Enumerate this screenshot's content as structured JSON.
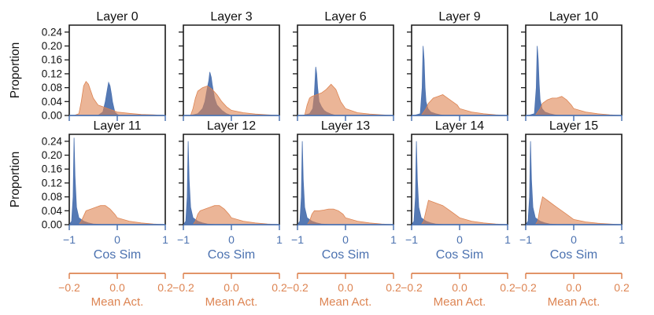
{
  "colors": {
    "cos_sim": "#4c72b0",
    "mean_act": "#dd8452",
    "frame": "#1a1a1a"
  },
  "chart_data": {
    "type": "area",
    "layout": "2 rows x 5 columns of small-multiple histograms",
    "ylabel": "Proportion",
    "ylim": [
      0,
      0.26
    ],
    "yticks": [
      "0.00",
      "0.04",
      "0.08",
      "0.12",
      "0.16",
      "0.20",
      "0.24"
    ],
    "bottom_axis": {
      "label": "Cos Sim",
      "range": [
        -1,
        1
      ],
      "ticks": [
        "−1",
        "0",
        "1"
      ]
    },
    "secondary_axis": {
      "label": "Mean Act.",
      "range": [
        -0.2,
        0.2
      ],
      "ticks": [
        "−0.2",
        "0.0",
        "0.2"
      ]
    },
    "series_legend": [
      "Cos Sim",
      "Mean Act."
    ],
    "panels": [
      {
        "title": "Layer 0",
        "cos_sim": {
          "x": [
            -0.4,
            -0.3,
            -0.25,
            -0.2,
            -0.18,
            -0.15,
            -0.12,
            -0.1,
            -0.05,
            0.0,
            0.05
          ],
          "y": [
            0,
            0.01,
            0.04,
            0.08,
            0.095,
            0.085,
            0.06,
            0.04,
            0.01,
            0.003,
            0
          ]
        },
        "mean_act": {
          "x": [
            -0.2,
            -0.18,
            -0.16,
            -0.15,
            -0.14,
            -0.13,
            -0.12,
            -0.1,
            -0.08,
            -0.06,
            -0.04,
            -0.02,
            0.0,
            0.05,
            0.1,
            0.15,
            0.2
          ],
          "y": [
            0,
            0,
            0.005,
            0.04,
            0.085,
            0.098,
            0.09,
            0.05,
            0.03,
            0.025,
            0.02,
            0.015,
            0.01,
            0.006,
            0.003,
            0.002,
            0
          ]
        }
      },
      {
        "title": "Layer 3",
        "cos_sim": {
          "x": [
            -0.85,
            -0.7,
            -0.6,
            -0.55,
            -0.5,
            -0.47,
            -0.45,
            -0.42,
            -0.4,
            -0.35,
            -0.3,
            -0.2,
            -0.1,
            0.0
          ],
          "y": [
            0,
            0.005,
            0.02,
            0.04,
            0.08,
            0.1,
            0.125,
            0.11,
            0.09,
            0.05,
            0.03,
            0.015,
            0.005,
            0
          ]
        },
        "mean_act": {
          "x": [
            -0.2,
            -0.17,
            -0.16,
            -0.15,
            -0.14,
            -0.12,
            -0.1,
            -0.08,
            -0.06,
            -0.04,
            -0.02,
            0.0,
            0.05,
            0.1,
            0.15,
            0.2
          ],
          "y": [
            0,
            0,
            0.02,
            0.05,
            0.07,
            0.08,
            0.085,
            0.075,
            0.06,
            0.04,
            0.025,
            0.015,
            0.008,
            0.004,
            0.002,
            0
          ]
        }
      },
      {
        "title": "Layer 6",
        "cos_sim": {
          "x": [
            -0.9,
            -0.75,
            -0.68,
            -0.65,
            -0.62,
            -0.6,
            -0.58,
            -0.55,
            -0.5,
            -0.45,
            -0.4,
            -0.3,
            -0.2
          ],
          "y": [
            0,
            0.005,
            0.02,
            0.06,
            0.14,
            0.12,
            0.08,
            0.04,
            0.025,
            0.015,
            0.01,
            0.004,
            0
          ]
        },
        "mean_act": {
          "x": [
            -0.2,
            -0.17,
            -0.16,
            -0.15,
            -0.14,
            -0.12,
            -0.1,
            -0.08,
            -0.06,
            -0.04,
            -0.02,
            0.0,
            0.05,
            0.1,
            0.15,
            0.2
          ],
          "y": [
            0,
            0,
            0.03,
            0.05,
            0.055,
            0.06,
            0.065,
            0.075,
            0.09,
            0.075,
            0.04,
            0.02,
            0.008,
            0.004,
            0.002,
            0
          ]
        }
      },
      {
        "title": "Layer 9",
        "cos_sim": {
          "x": [
            -0.95,
            -0.82,
            -0.78,
            -0.76,
            -0.74,
            -0.72,
            -0.7,
            -0.66,
            -0.6,
            -0.5,
            -0.4,
            -0.3
          ],
          "y": [
            0,
            0.005,
            0.08,
            0.2,
            0.16,
            0.08,
            0.04,
            0.02,
            0.01,
            0.005,
            0.002,
            0
          ]
        },
        "mean_act": {
          "x": [
            -0.2,
            -0.16,
            -0.15,
            -0.14,
            -0.13,
            -0.11,
            -0.09,
            -0.07,
            -0.05,
            -0.03,
            -0.01,
            0.0,
            0.05,
            0.1,
            0.15,
            0.2
          ],
          "y": [
            0,
            0,
            0.01,
            0.02,
            0.035,
            0.05,
            0.055,
            0.06,
            0.05,
            0.04,
            0.03,
            0.02,
            0.01,
            0.005,
            0.002,
            0
          ]
        }
      },
      {
        "title": "Layer 10",
        "cos_sim": {
          "x": [
            -0.95,
            -0.82,
            -0.78,
            -0.76,
            -0.74,
            -0.72,
            -0.7,
            -0.66,
            -0.6,
            -0.5,
            -0.4,
            -0.3
          ],
          "y": [
            0,
            0.005,
            0.08,
            0.2,
            0.16,
            0.09,
            0.045,
            0.02,
            0.01,
            0.005,
            0.002,
            0
          ]
        },
        "mean_act": {
          "x": [
            -0.2,
            -0.16,
            -0.15,
            -0.14,
            -0.13,
            -0.11,
            -0.09,
            -0.07,
            -0.05,
            -0.03,
            -0.01,
            0.0,
            0.05,
            0.1,
            0.15,
            0.2
          ],
          "y": [
            0,
            0,
            0.01,
            0.02,
            0.035,
            0.045,
            0.05,
            0.05,
            0.055,
            0.045,
            0.03,
            0.02,
            0.01,
            0.005,
            0.002,
            0
          ]
        }
      },
      {
        "title": "Layer 11",
        "cos_sim": {
          "x": [
            -1.0,
            -0.95,
            -0.92,
            -0.9,
            -0.88,
            -0.85,
            -0.8,
            -0.7,
            -0.6,
            -0.5,
            -0.3
          ],
          "y": [
            0,
            0.01,
            0.08,
            0.25,
            0.14,
            0.05,
            0.02,
            0.01,
            0.005,
            0.002,
            0
          ]
        },
        "mean_act": {
          "x": [
            -0.2,
            -0.16,
            -0.15,
            -0.14,
            -0.13,
            -0.11,
            -0.09,
            -0.07,
            -0.05,
            -0.03,
            -0.01,
            0.0,
            0.05,
            0.1,
            0.15,
            0.2
          ],
          "y": [
            0,
            0,
            0.01,
            0.025,
            0.04,
            0.045,
            0.05,
            0.055,
            0.055,
            0.045,
            0.03,
            0.02,
            0.01,
            0.005,
            0.002,
            0
          ]
        }
      },
      {
        "title": "Layer 12",
        "cos_sim": {
          "x": [
            -1.0,
            -0.95,
            -0.92,
            -0.9,
            -0.88,
            -0.85,
            -0.8,
            -0.7,
            -0.6,
            -0.5,
            -0.3
          ],
          "y": [
            0,
            0.01,
            0.08,
            0.24,
            0.13,
            0.05,
            0.02,
            0.01,
            0.005,
            0.002,
            0
          ]
        },
        "mean_act": {
          "x": [
            -0.2,
            -0.16,
            -0.15,
            -0.14,
            -0.13,
            -0.11,
            -0.09,
            -0.07,
            -0.05,
            -0.03,
            -0.01,
            0.0,
            0.05,
            0.1,
            0.15,
            0.2
          ],
          "y": [
            0,
            0,
            0.01,
            0.03,
            0.04,
            0.045,
            0.05,
            0.055,
            0.055,
            0.045,
            0.03,
            0.02,
            0.01,
            0.005,
            0.002,
            0
          ]
        }
      },
      {
        "title": "Layer 13",
        "cos_sim": {
          "x": [
            -1.0,
            -0.95,
            -0.92,
            -0.9,
            -0.88,
            -0.85,
            -0.8,
            -0.7,
            -0.6,
            -0.5,
            -0.3
          ],
          "y": [
            0,
            0.01,
            0.08,
            0.24,
            0.13,
            0.05,
            0.02,
            0.01,
            0.005,
            0.002,
            0
          ]
        },
        "mean_act": {
          "x": [
            -0.2,
            -0.16,
            -0.15,
            -0.14,
            -0.13,
            -0.11,
            -0.09,
            -0.07,
            -0.05,
            -0.03,
            -0.01,
            0.0,
            0.05,
            0.1,
            0.15,
            0.2
          ],
          "y": [
            0,
            0,
            0.01,
            0.03,
            0.04,
            0.04,
            0.042,
            0.045,
            0.045,
            0.04,
            0.03,
            0.02,
            0.01,
            0.005,
            0.002,
            0
          ]
        }
      },
      {
        "title": "Layer 14",
        "cos_sim": {
          "x": [
            -1.0,
            -0.95,
            -0.92,
            -0.9,
            -0.88,
            -0.85,
            -0.8,
            -0.7,
            -0.6,
            -0.5,
            -0.3
          ],
          "y": [
            0,
            0.01,
            0.08,
            0.24,
            0.13,
            0.05,
            0.02,
            0.01,
            0.005,
            0.002,
            0
          ]
        },
        "mean_act": {
          "x": [
            -0.2,
            -0.16,
            -0.15,
            -0.14,
            -0.13,
            -0.11,
            -0.09,
            -0.07,
            -0.05,
            -0.03,
            -0.01,
            0.0,
            0.05,
            0.1,
            0.15,
            0.2
          ],
          "y": [
            0,
            0,
            0.01,
            0.04,
            0.07,
            0.065,
            0.06,
            0.055,
            0.045,
            0.035,
            0.025,
            0.02,
            0.01,
            0.005,
            0.002,
            0
          ]
        }
      },
      {
        "title": "Layer 15",
        "cos_sim": {
          "x": [
            -1.0,
            -0.95,
            -0.92,
            -0.9,
            -0.88,
            -0.85,
            -0.8,
            -0.7,
            -0.6,
            -0.5,
            -0.3
          ],
          "y": [
            0,
            0.01,
            0.08,
            0.24,
            0.13,
            0.05,
            0.02,
            0.01,
            0.005,
            0.002,
            0
          ]
        },
        "mean_act": {
          "x": [
            -0.2,
            -0.16,
            -0.15,
            -0.14,
            -0.13,
            -0.11,
            -0.09,
            -0.07,
            -0.05,
            -0.03,
            -0.01,
            0.0,
            0.05,
            0.1,
            0.15,
            0.2
          ],
          "y": [
            0,
            0,
            0.01,
            0.05,
            0.08,
            0.07,
            0.06,
            0.05,
            0.04,
            0.03,
            0.02,
            0.015,
            0.008,
            0.004,
            0.002,
            0
          ]
        }
      }
    ]
  }
}
